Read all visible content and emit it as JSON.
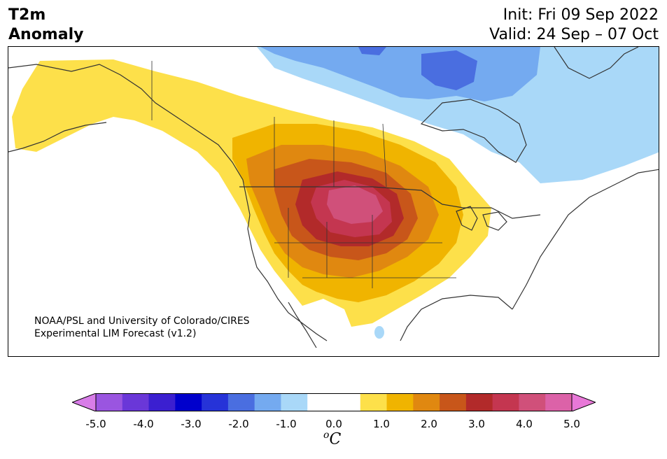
{
  "title": {
    "variable_line1": "T2m",
    "variable_line2": "Anomaly",
    "init": "Init: Fri 09 Sep 2022",
    "valid": "Valid: 24 Sep – 07 Oct"
  },
  "credit": {
    "line1": "NOAA/PSL and University of Colorado/CIRES",
    "line2": "Experimental LIM Forecast (v1.2)"
  },
  "colorbar": {
    "unit_symbol": "C",
    "unit_superscript": "o",
    "tick_labels": [
      "-5.0",
      "-4.0",
      "-3.0",
      "-2.0",
      "-1.0",
      "0.0",
      "1.0",
      "2.0",
      "3.0",
      "4.0",
      "5.0"
    ],
    "colors": [
      "#d87de8",
      "#9a55e0",
      "#6a37d8",
      "#3b1fd0",
      "#0000cc",
      "#2633d8",
      "#4a6ee0",
      "#74aaf0",
      "#a9d8f8",
      "#ffffff",
      "#ffffff",
      "#fde04a",
      "#f0b400",
      "#e08810",
      "#c8561a",
      "#b22a2a",
      "#c43650",
      "#d0507a",
      "#dc62a8",
      "#e878d8"
    ]
  },
  "map": {
    "region": "North America",
    "anomaly_colors": {
      "cold_light": "#a9d8f8",
      "cold_mid": "#74aaf0",
      "cold_strong": "#4a6ee0",
      "warm_1": "#fde04a",
      "warm_2": "#f0b400",
      "warm_3": "#e08810",
      "warm_4": "#c8561a",
      "warm_5": "#b22a2a",
      "warm_6": "#c43650",
      "warm_7": "#d0507a"
    }
  }
}
